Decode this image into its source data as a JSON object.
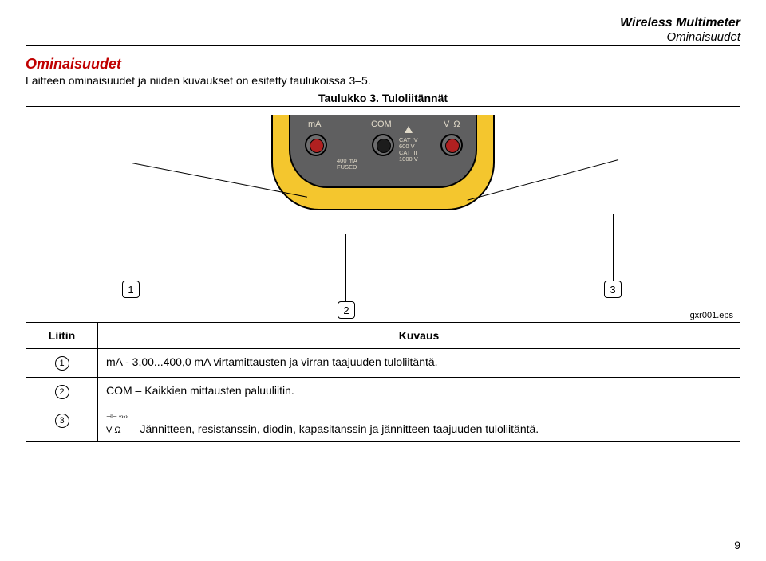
{
  "header": {
    "title": "Wireless Multimeter",
    "subtitle": "Ominaisuudet"
  },
  "section": {
    "heading": "Ominaisuudet",
    "intro": "Laitteen ominaisuudet ja niiden kuvaukset on esitetty taulukoissa 3–5.",
    "table_caption": "Taulukko 3. Tuloliitännät"
  },
  "device": {
    "labels": {
      "ma": "mA",
      "com": "COM",
      "vohm": "V Ω"
    },
    "fuse_text": "400 mA\nFUSED",
    "cat_text": "CAT IV\n600 V\nCAT III\n1000 V",
    "colors": {
      "outer": "#f4c62e",
      "inner": "#5f5f60",
      "jack_red": "#b02020",
      "jack_black": "#1c1c1c",
      "label": "#e0d9c8"
    }
  },
  "callouts": [
    "1",
    "2",
    "3"
  ],
  "fig_caption": "gxr001.eps",
  "table": {
    "headers": [
      "Liitin",
      "Kuvaus"
    ],
    "rows": [
      {
        "num": "1",
        "desc": "mA - 3,00...400,0 mA virtamittausten ja virran taajuuden tuloliitäntä."
      },
      {
        "num": "2",
        "desc": "COM – Kaikkien mittausten paluuliitin."
      },
      {
        "num": "3",
        "prefix_icon": true,
        "desc": " – Jännitteen, resistanssin, diodin, kapasitanssin ja jännitteen taajuuden tuloliitäntä."
      }
    ]
  },
  "page_number": "9"
}
